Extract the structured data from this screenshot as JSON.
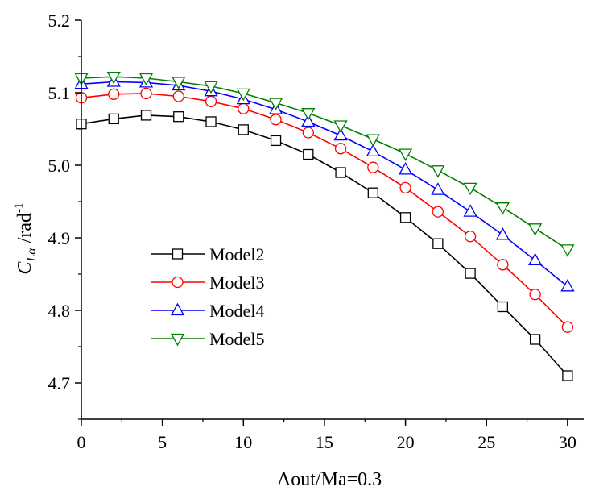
{
  "chart_data": {
    "type": "line",
    "title": "",
    "xlabel": "Λout/Ma=0.3",
    "ylabel_main": "C",
    "ylabel_sub": "Lα",
    "ylabel_unit": "/rad",
    "ylabel_sup": "-1",
    "xlim": [
      0,
      31
    ],
    "ylim": [
      4.65,
      5.2
    ],
    "xticks": [
      0,
      5,
      10,
      15,
      20,
      25,
      30
    ],
    "yticks": [
      4.7,
      4.8,
      4.9,
      5.0,
      5.1,
      5.2
    ],
    "ytick_labels": [
      "4.7",
      "4.8",
      "4.9",
      "5.0",
      "5.1",
      "5.2"
    ],
    "legend_position": "left-middle",
    "x": [
      0,
      2,
      4,
      6,
      8,
      10,
      12,
      14,
      16,
      18,
      20,
      22,
      24,
      26,
      28,
      30
    ],
    "series": [
      {
        "name": "Model2",
        "color": "#000000",
        "marker": "square",
        "values": [
          5.057,
          5.064,
          5.069,
          5.067,
          5.06,
          5.049,
          5.034,
          5.015,
          4.99,
          4.962,
          4.928,
          4.892,
          4.851,
          4.805,
          4.76,
          4.71
        ]
      },
      {
        "name": "Model3",
        "color": "#ff0000",
        "marker": "circle",
        "values": [
          5.093,
          5.098,
          5.099,
          5.095,
          5.088,
          5.078,
          5.063,
          5.045,
          5.023,
          4.997,
          4.969,
          4.936,
          4.902,
          4.863,
          4.822,
          4.777
        ]
      },
      {
        "name": "Model4",
        "color": "#0000ff",
        "marker": "triangle-up",
        "values": [
          5.112,
          5.115,
          5.114,
          5.11,
          5.102,
          5.091,
          5.077,
          5.06,
          5.041,
          5.019,
          4.994,
          4.966,
          4.936,
          4.904,
          4.869,
          4.833
        ]
      },
      {
        "name": "Model5",
        "color": "#008000",
        "marker": "triangle-down",
        "values": [
          5.12,
          5.122,
          5.12,
          5.115,
          5.109,
          5.099,
          5.086,
          5.072,
          5.055,
          5.036,
          5.016,
          4.993,
          4.969,
          4.942,
          4.913,
          4.884
        ]
      }
    ]
  }
}
